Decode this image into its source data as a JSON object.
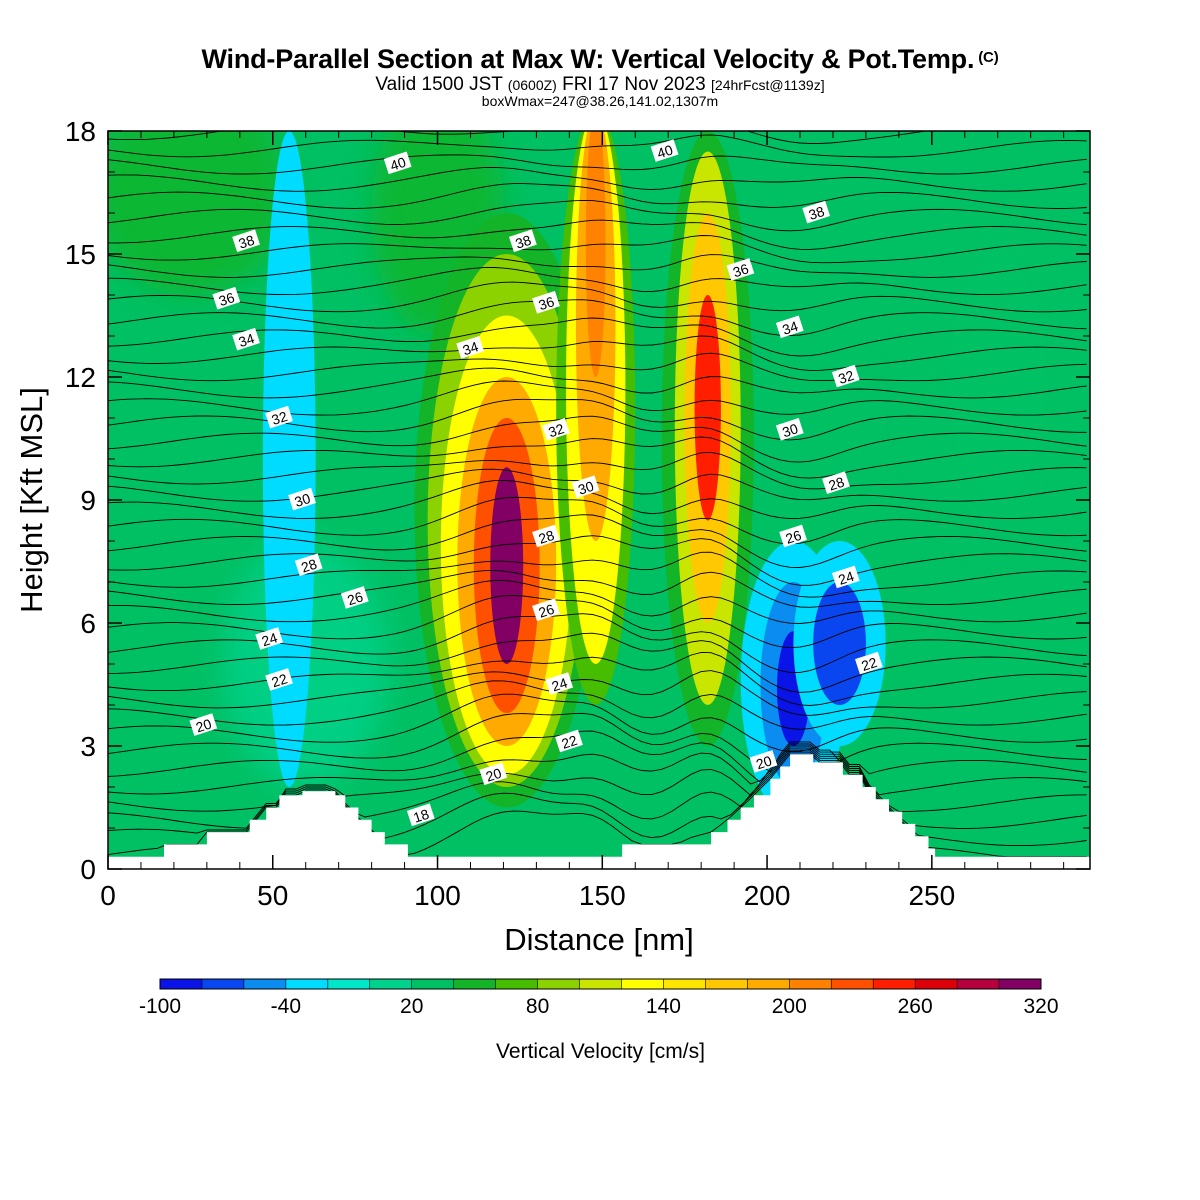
{
  "title": "Wind-Parallel Section at Max W: Vertical Velocity & Pot.Temp.",
  "title_mark": "(C)",
  "subtitle_main": "Valid 1500 JST",
  "subtitle_utc": "(0600Z)",
  "subtitle_date": "FRI 17 Nov 2023",
  "subtitle_fcst": "[24hrFcst@1139z]",
  "subtitle2": "boxWmax=247@38.26,141.02,1307m",
  "chart_data": {
    "type": "heatmap",
    "xlabel": "Distance [nm]",
    "ylabel": "Height [Kft MSL]",
    "xlim": [
      0,
      298
    ],
    "ylim": [
      0,
      18
    ],
    "x_ticks": [
      0,
      50,
      100,
      150,
      200,
      250
    ],
    "y_ticks": [
      0,
      3,
      6,
      9,
      12,
      15,
      18
    ],
    "colorbar": {
      "title": "Vertical Velocity [cm/s]",
      "min": -100,
      "max": 320,
      "step": 20,
      "tick_labels": [
        "-100",
        "-40",
        "20",
        "80",
        "140",
        "200",
        "260",
        "320"
      ],
      "colors": [
        "#0a14e6",
        "#0a46f0",
        "#0a8cf0",
        "#00dcff",
        "#00e6c8",
        "#00d28c",
        "#00c064",
        "#14b428",
        "#46bd00",
        "#8cd200",
        "#c8e600",
        "#ffff00",
        "#ffe600",
        "#ffc800",
        "#ffaa00",
        "#ff8200",
        "#ff5000",
        "#ff1e00",
        "#dc000a",
        "#b4003c",
        "#820064"
      ]
    },
    "velocity_features": [
      {
        "kind": "updraft",
        "x_nm": 121,
        "z_kft": 7.3,
        "peak_cm_s": 300
      },
      {
        "kind": "updraft",
        "x_nm": 148,
        "z_kft": 15.5,
        "peak_cm_s": 200
      },
      {
        "kind": "updraft",
        "x_nm": 182,
        "z_kft": 11.5,
        "peak_cm_s": 240
      },
      {
        "kind": "downdraft",
        "x_nm": 208,
        "z_kft": 4.3,
        "peak_cm_s": -95
      },
      {
        "kind": "downdraft",
        "x_nm": 222,
        "z_kft": 5.5,
        "peak_cm_s": -70
      },
      {
        "kind": "weak_downdraft",
        "x_nm": 55,
        "z_kft": 11,
        "peak_cm_s": -30
      }
    ],
    "terrain_kft": [
      [
        0,
        0.3
      ],
      [
        16,
        0.3
      ],
      [
        17,
        0.6
      ],
      [
        29,
        0.6
      ],
      [
        30,
        0.9
      ],
      [
        42,
        0.9
      ],
      [
        43,
        1.2
      ],
      [
        47,
        1.2
      ],
      [
        48,
        1.5
      ],
      [
        51,
        1.5
      ],
      [
        52,
        1.8
      ],
      [
        58,
        1.8
      ],
      [
        59,
        1.9
      ],
      [
        68,
        1.9
      ],
      [
        69,
        1.8
      ],
      [
        72,
        1.5
      ],
      [
        76,
        1.2
      ],
      [
        80,
        0.9
      ],
      [
        84,
        0.6
      ],
      [
        91,
        0.3
      ],
      [
        155,
        0.3
      ],
      [
        156,
        0.6
      ],
      [
        179,
        0.6
      ],
      [
        183,
        0.9
      ],
      [
        188,
        1.2
      ],
      [
        192,
        1.5
      ],
      [
        196,
        1.8
      ],
      [
        201,
        2.2
      ],
      [
        204,
        2.5
      ],
      [
        207,
        2.8
      ],
      [
        213,
        2.8
      ],
      [
        214,
        2.6
      ],
      [
        222,
        2.6
      ],
      [
        223,
        2.3
      ],
      [
        228,
        2.3
      ],
      [
        229,
        2.0
      ],
      [
        233,
        1.7
      ],
      [
        237,
        1.4
      ],
      [
        241,
        1.1
      ],
      [
        245,
        0.8
      ],
      [
        249,
        0.5
      ],
      [
        251,
        0.3
      ],
      [
        298,
        0.3
      ]
    ],
    "theta_contour_labels": [
      {
        "text": "18",
        "x": 95,
        "z": 1.3
      },
      {
        "text": "20",
        "x": 29,
        "z": 3.5
      },
      {
        "text": "20",
        "x": 117,
        "z": 2.3
      },
      {
        "text": "20",
        "x": 199,
        "z": 2.6
      },
      {
        "text": "22",
        "x": 52,
        "z": 4.6
      },
      {
        "text": "22",
        "x": 140,
        "z": 3.1
      },
      {
        "text": "22",
        "x": 231,
        "z": 5.0
      },
      {
        "text": "24",
        "x": 49,
        "z": 5.6
      },
      {
        "text": "24",
        "x": 137,
        "z": 4.5
      },
      {
        "text": "24",
        "x": 224,
        "z": 7.1
      },
      {
        "text": "26",
        "x": 75,
        "z": 6.6
      },
      {
        "text": "26",
        "x": 133,
        "z": 6.3
      },
      {
        "text": "26",
        "x": 208,
        "z": 8.1
      },
      {
        "text": "28",
        "x": 61,
        "z": 7.4
      },
      {
        "text": "28",
        "x": 133,
        "z": 8.1
      },
      {
        "text": "28",
        "x": 221,
        "z": 9.4
      },
      {
        "text": "30",
        "x": 59,
        "z": 9.0
      },
      {
        "text": "30",
        "x": 145,
        "z": 9.3
      },
      {
        "text": "30",
        "x": 207,
        "z": 10.7
      },
      {
        "text": "32",
        "x": 52,
        "z": 11.0
      },
      {
        "text": "32",
        "x": 136,
        "z": 10.7
      },
      {
        "text": "32",
        "x": 224,
        "z": 12.0
      },
      {
        "text": "34",
        "x": 42,
        "z": 12.9
      },
      {
        "text": "34",
        "x": 110,
        "z": 12.7
      },
      {
        "text": "34",
        "x": 207,
        "z": 13.2
      },
      {
        "text": "36",
        "x": 36,
        "z": 13.9
      },
      {
        "text": "36",
        "x": 133,
        "z": 13.8
      },
      {
        "text": "36",
        "x": 192,
        "z": 14.6
      },
      {
        "text": "38",
        "x": 42,
        "z": 15.3
      },
      {
        "text": "38",
        "x": 126,
        "z": 15.3
      },
      {
        "text": "38",
        "x": 215,
        "z": 16.0
      },
      {
        "text": "40",
        "x": 88,
        "z": 17.2
      },
      {
        "text": "40",
        "x": 169,
        "z": 17.5
      }
    ]
  }
}
